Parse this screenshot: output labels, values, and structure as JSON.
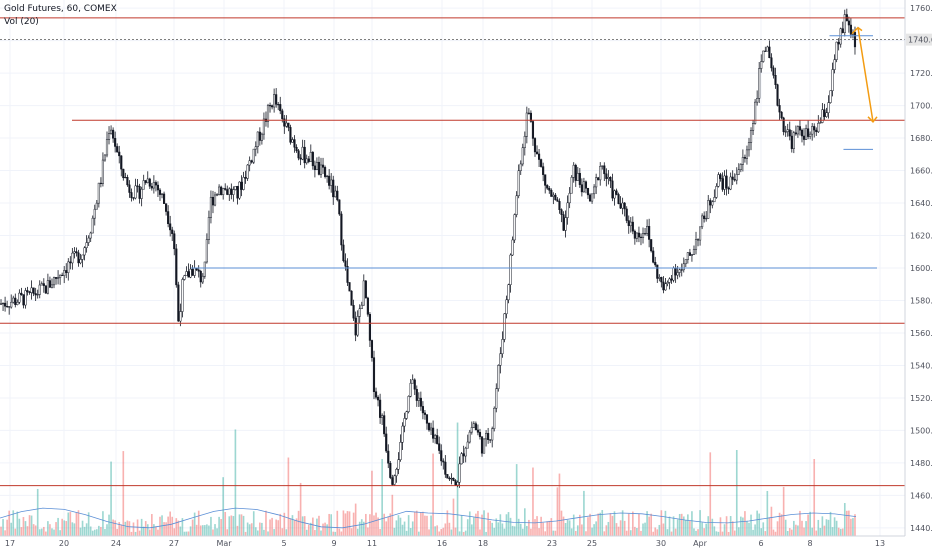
{
  "header": {
    "symbol_line": "Gold Futures, 60, COMEX",
    "volume_line": "Vol (20)"
  },
  "colors": {
    "up_bar": "#26a69a",
    "down_bar": "#ef5350",
    "candle": "#131722",
    "resistance": "#c0392b",
    "support": "#5b8fd6",
    "arrow": "#f39c12",
    "vol_ma": "#5b8fd6",
    "grid": "#f0f3fa",
    "price_tag_bg": "#e6e6e6"
  },
  "chart_data": {
    "type": "candlestick",
    "title": "Gold Futures, 60, COMEX",
    "volume_indicator": "Vol (20)",
    "y_axis": {
      "min": 1435,
      "max": 1765,
      "ticks": [
        1440.0,
        1460.0,
        1480.0,
        1500.0,
        1520.0,
        1540.0,
        1560.0,
        1580.0,
        1600.0,
        1620.0,
        1640.0,
        1660.0,
        1680.0,
        1700.0,
        1720.0,
        1740.0,
        1760.0
      ],
      "position": "right"
    },
    "x_axis": {
      "ticks": [
        "17",
        "20",
        "24",
        "27",
        "Mar",
        "5",
        "9",
        "11",
        "16",
        "18",
        "23",
        "25",
        "30",
        "Apr",
        "6",
        "8",
        "13"
      ]
    },
    "current_price": "1740.6",
    "price_path": [
      [
        0,
        1578
      ],
      [
        3,
        1582
      ],
      [
        5,
        1588
      ],
      [
        7,
        1600
      ],
      [
        9,
        1610
      ],
      [
        10,
        1628
      ],
      [
        11,
        1655
      ],
      [
        12,
        1690
      ],
      [
        13,
        1665
      ],
      [
        14,
        1650
      ],
      [
        15,
        1645
      ],
      [
        16,
        1655
      ],
      [
        17,
        1652
      ],
      [
        18,
        1640
      ],
      [
        19,
        1620
      ],
      [
        19.5,
        1567
      ],
      [
        20,
        1590
      ],
      [
        21,
        1600
      ],
      [
        22,
        1594
      ],
      [
        22.5,
        1600
      ],
      [
        23,
        1640
      ],
      [
        24,
        1650
      ],
      [
        26,
        1645
      ],
      [
        27,
        1660
      ],
      [
        28,
        1675
      ],
      [
        29,
        1690
      ],
      [
        30,
        1705
      ],
      [
        31,
        1690
      ],
      [
        32,
        1680
      ],
      [
        33,
        1670
      ],
      [
        34,
        1668
      ],
      [
        35,
        1660
      ],
      [
        36,
        1655
      ],
      [
        37,
        1640
      ],
      [
        38,
        1595
      ],
      [
        39,
        1560
      ],
      [
        40,
        1590
      ],
      [
        41,
        1530
      ],
      [
        42,
        1505
      ],
      [
        43,
        1470
      ],
      [
        44,
        1490
      ],
      [
        45,
        1530
      ],
      [
        46,
        1520
      ],
      [
        47,
        1500
      ],
      [
        48,
        1490
      ],
      [
        49,
        1475
      ],
      [
        50,
        1465
      ],
      [
        51,
        1490
      ],
      [
        52,
        1505
      ],
      [
        53,
        1490
      ],
      [
        54,
        1500
      ],
      [
        55,
        1550
      ],
      [
        56,
        1600
      ],
      [
        57,
        1660
      ],
      [
        58,
        1698
      ],
      [
        59,
        1670
      ],
      [
        60,
        1650
      ],
      [
        61,
        1640
      ],
      [
        62,
        1625
      ],
      [
        63,
        1660
      ],
      [
        64,
        1650
      ],
      [
        65,
        1640
      ],
      [
        66,
        1665
      ],
      [
        67,
        1650
      ],
      [
        68,
        1640
      ],
      [
        69,
        1630
      ],
      [
        70,
        1620
      ],
      [
        71,
        1625
      ],
      [
        72,
        1600
      ],
      [
        73,
        1585
      ],
      [
        74,
        1600
      ],
      [
        75,
        1598
      ],
      [
        76,
        1610
      ],
      [
        77,
        1625
      ],
      [
        78,
        1640
      ],
      [
        79,
        1655
      ],
      [
        80,
        1650
      ],
      [
        81,
        1660
      ],
      [
        82,
        1668
      ],
      [
        83,
        1700
      ],
      [
        84,
        1740
      ],
      [
        85,
        1715
      ],
      [
        86,
        1690
      ],
      [
        87,
        1678
      ],
      [
        88,
        1685
      ],
      [
        89,
        1680
      ],
      [
        90,
        1688
      ],
      [
        91,
        1700
      ],
      [
        92,
        1735
      ],
      [
        93,
        1754
      ],
      [
        94,
        1740
      ]
    ],
    "annotations": {
      "resistance_lines": [
        1754,
        1691,
        1566,
        1466
      ],
      "support_lines": [
        {
          "price": 1600,
          "x_start_frac": 0.205
        },
        {
          "price": 1743,
          "x_start_frac": 0.89
        },
        {
          "price": 1673,
          "x_start_frac": 0.905
        }
      ],
      "projection_arrow": {
        "from_price": 1748,
        "to_price": 1690
      }
    }
  }
}
